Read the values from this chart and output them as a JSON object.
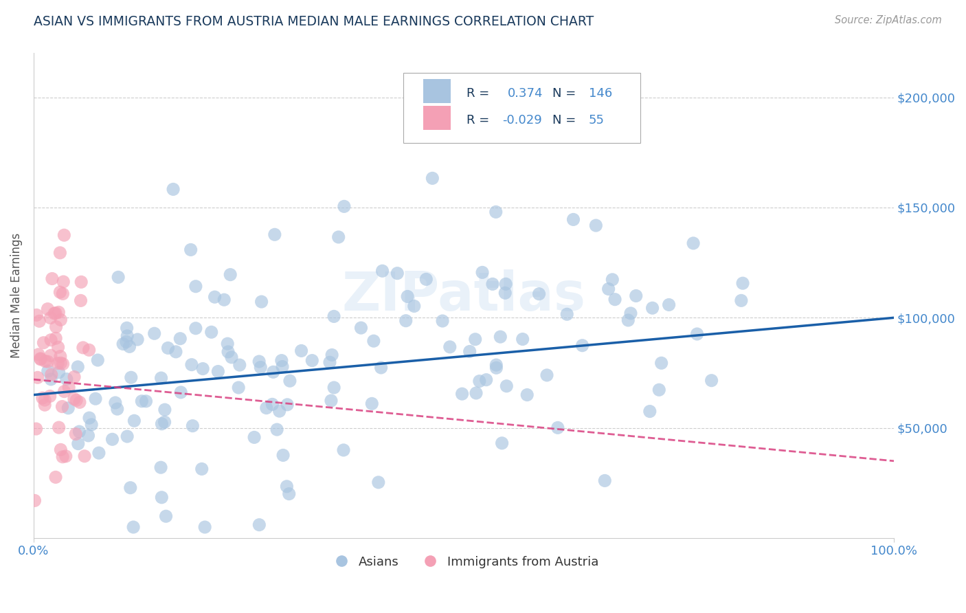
{
  "title": "ASIAN VS IMMIGRANTS FROM AUSTRIA MEDIAN MALE EARNINGS CORRELATION CHART",
  "source": "Source: ZipAtlas.com",
  "ylabel": "Median Male Earnings",
  "xlim": [
    0,
    1.0
  ],
  "ylim": [
    0,
    220000
  ],
  "yticks": [
    50000,
    100000,
    150000,
    200000
  ],
  "xtick_labels": [
    "0.0%",
    "100.0%"
  ],
  "watermark": "ZIPatlas",
  "asian_color": "#a8c4e0",
  "asian_trend_color": "#1a5fa8",
  "austria_color": "#f4a0b5",
  "austria_trend_color": "#d94080",
  "background_color": "#ffffff",
  "grid_color": "#c8c8c8",
  "title_color": "#1a3a5c",
  "axis_label_color": "#555555",
  "tick_label_color": "#4488cc",
  "legend_r1": "R =  0.374",
  "legend_n1": "N = 146",
  "legend_r2": "R = -0.029",
  "legend_n2": "N =  55",
  "asian_trend_x0": 0.0,
  "asian_trend_y0": 65000,
  "asian_trend_x1": 1.0,
  "asian_trend_y1": 100000,
  "austria_trend_x0": 0.0,
  "austria_trend_y0": 72000,
  "austria_trend_x1": 1.0,
  "austria_trend_y1": 35000,
  "N_asian": 146,
  "N_austria": 55
}
